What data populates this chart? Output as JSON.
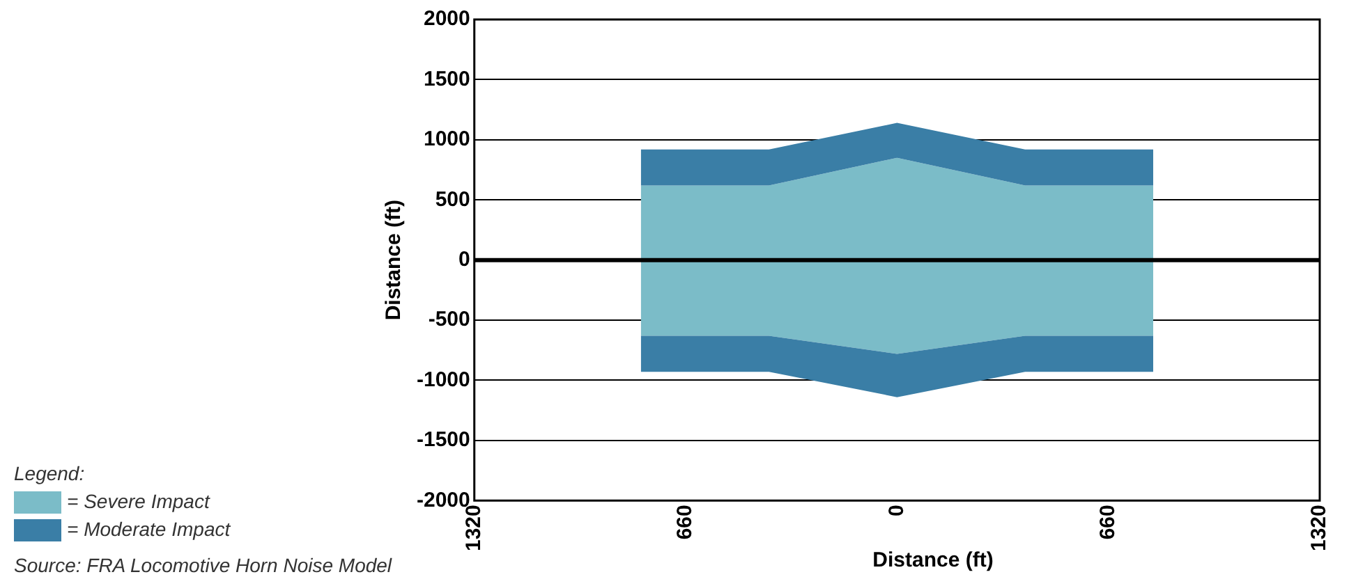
{
  "chart_data": {
    "type": "area",
    "xlabel": "Distance (ft)",
    "ylabel": "Distance (ft)",
    "legend_title": "Legend:",
    "x": [
      -800,
      -400,
      0,
      400,
      800
    ],
    "series": [
      {
        "name": "= Severe Impact",
        "color": "#7bbcc8",
        "values": [
          620,
          620,
          850,
          620,
          620
        ]
      },
      {
        "name": "= Moderate Impact",
        "color": "#3a7ea6",
        "values": [
          920,
          920,
          1140,
          920,
          920
        ]
      },
      {
        "color": "#7bbcc8",
        "values": [
          -630,
          -630,
          -780,
          -630,
          -630
        ]
      },
      {
        "color": "#3a7ea6",
        "values": [
          -930,
          -930,
          -1140,
          -930,
          -930
        ]
      }
    ],
    "xlim": [
      -1320,
      1320
    ],
    "xticks": [
      {
        "value": -1320,
        "label": "1320"
      },
      {
        "value": -660,
        "label": "660"
      },
      0,
      660,
      1320
    ],
    "ylim": [
      -2000,
      2000
    ],
    "yticks": [
      -2000,
      -1500,
      -1000,
      -500,
      0,
      500,
      1000,
      1500,
      2000
    ],
    "grid": "y",
    "legend": "bottom left",
    "ref_lines": [
      {
        "axis": "y",
        "value": 0,
        "color": "#000000"
      }
    ],
    "annotations": [
      "Source: FRA Locomotive Horn Noise Model"
    ]
  }
}
